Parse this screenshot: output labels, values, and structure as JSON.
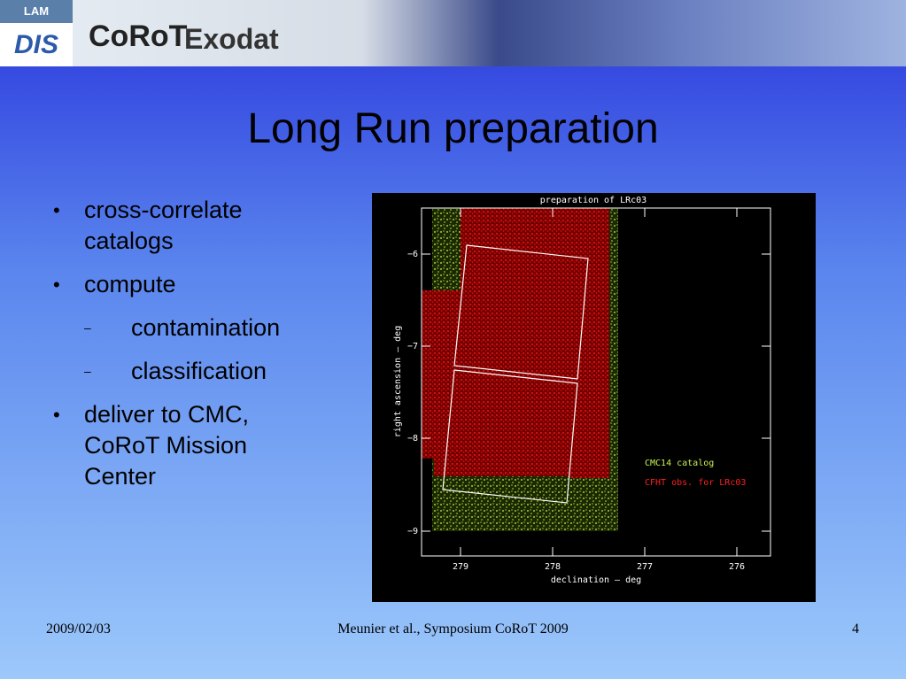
{
  "header": {
    "logos": [
      "LAM",
      "DIS",
      "CoRoT",
      "Exodat"
    ]
  },
  "title": "Long Run preparation",
  "bullets": [
    {
      "text": "cross-correlate catalogs"
    },
    {
      "text": "compute",
      "sub": [
        "contamination",
        "classification"
      ]
    },
    {
      "text": "deliver to CMC, CoRoT Mission Center"
    }
  ],
  "plot": {
    "title": "preparation of LRc03",
    "ylabel": "right ascension — deg",
    "xlabel": "declination — deg",
    "yticks": [
      "−6",
      "−7",
      "−8",
      "−9"
    ],
    "xticks": [
      "279",
      "278",
      "277",
      "276"
    ],
    "legend": [
      "CMC14 catalog",
      "CFHT obs. for LRc03"
    ]
  },
  "footer": {
    "date": "2009/02/03",
    "center": "Meunier et al., Symposium CoRoT 2009",
    "page": "4"
  }
}
